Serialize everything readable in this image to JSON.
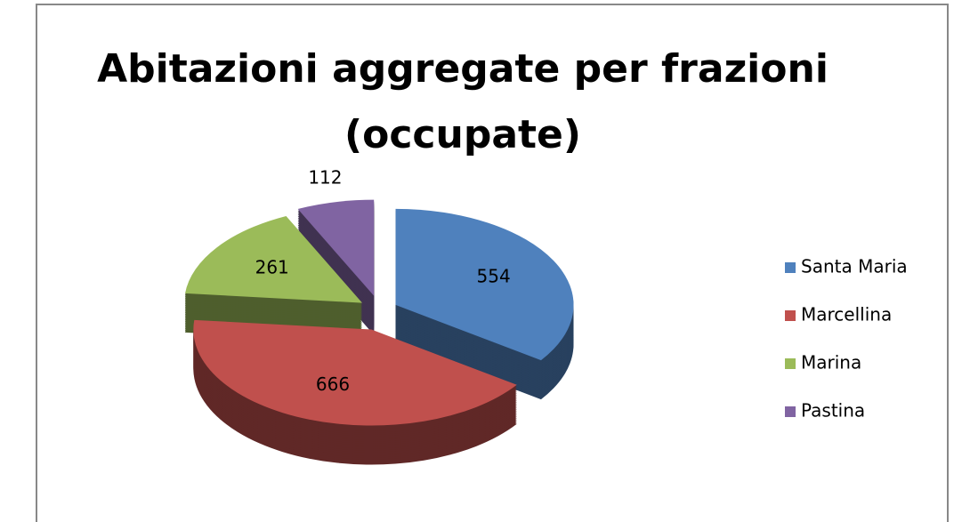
{
  "chart_data": {
    "type": "pie3d",
    "title": "Abitazioni aggregate per frazioni (occupate)",
    "categories": [
      "Santa Maria",
      "Marcellina",
      "Marina",
      "Pastina"
    ],
    "values": [
      554,
      666,
      261,
      112
    ],
    "colors": [
      "#4f81bd",
      "#c0504d",
      "#9bbb59",
      "#8064a2"
    ],
    "legend": "right"
  }
}
